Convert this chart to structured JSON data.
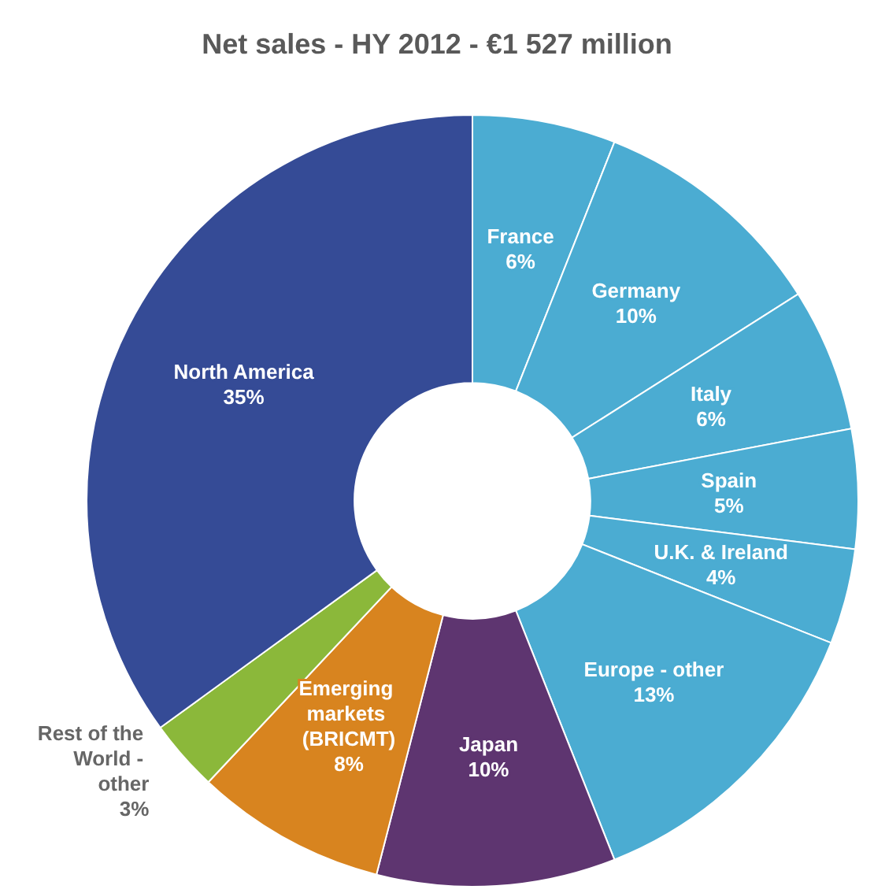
{
  "chart_data": {
    "type": "donut",
    "title": "Net sales - HY 2012 - €1 527 million",
    "categories": [
      "France",
      "Germany",
      "Italy",
      "Spain",
      "U.K. & Ireland",
      "Europe - other",
      "Japan",
      "Emerging markets (BRICMT)",
      "Rest of the World - other",
      "North America"
    ],
    "values": [
      6,
      10,
      6,
      5,
      4,
      13,
      10,
      8,
      3,
      35
    ],
    "value_labels": [
      "6%",
      "10%",
      "6%",
      "5%",
      "4%",
      "13%",
      "10%",
      "8%",
      "3%",
      "35%"
    ],
    "colors": [
      "#4bacd2",
      "#4bacd2",
      "#4bacd2",
      "#4bacd2",
      "#4bacd2",
      "#4bacd2",
      "#5e3570",
      "#d8841f",
      "#8bb83a",
      "#354b96"
    ],
    "legend": false
  }
}
